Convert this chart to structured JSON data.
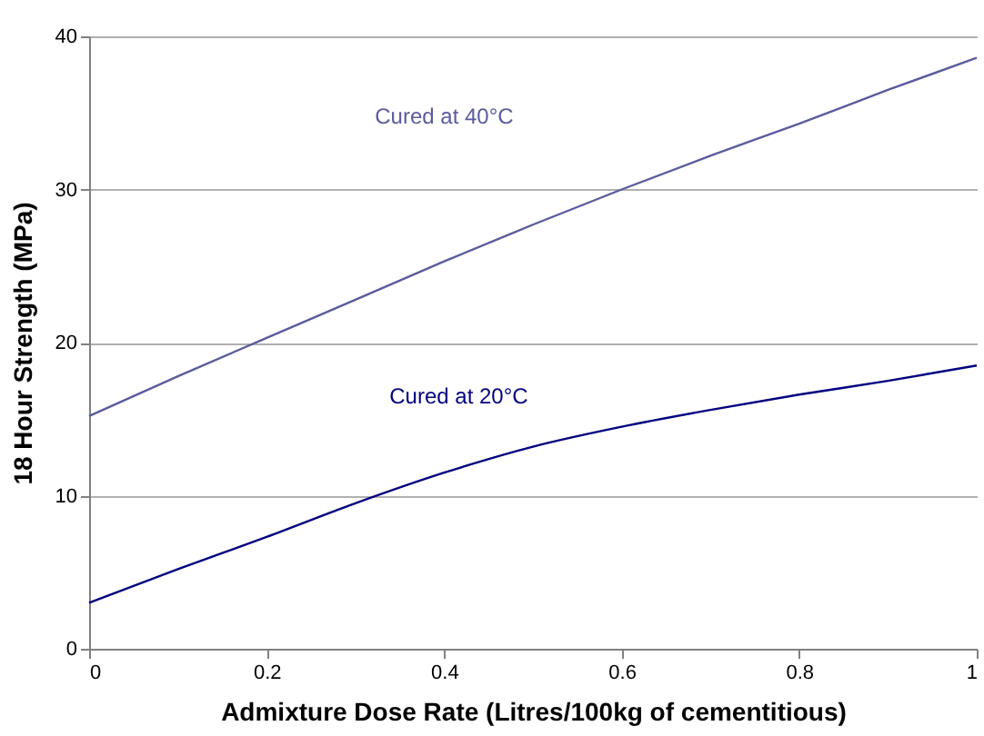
{
  "chart_data": {
    "type": "line",
    "xlabel": "Admixture Dose Rate (Litres/100kg of cementitious)",
    "ylabel": "18 Hour Strength (MPa)",
    "x": [
      0,
      0.1,
      0.2,
      0.3,
      0.4,
      0.5,
      0.6,
      0.7,
      0.8,
      0.9,
      1
    ],
    "series": [
      {
        "name": "Cured at 40°C",
        "color": "#5b5b9e",
        "values": [
          15.2,
          17.8,
          20.3,
          22.8,
          25.3,
          27.7,
          30,
          32.2,
          34.3,
          36.5,
          38.6
        ]
      },
      {
        "name": "Cured at 20°C",
        "color": "#000080",
        "values": [
          3,
          5.2,
          7.3,
          9.5,
          11.5,
          13.2,
          14.5,
          15.6,
          16.6,
          17.5,
          18.5
        ]
      }
    ],
    "xlim": [
      0,
      1
    ],
    "xticks": [
      0,
      0.2,
      0.4,
      0.6,
      0.8,
      1
    ],
    "ylim": [
      0,
      40
    ],
    "yticks": [
      0,
      10,
      20,
      30,
      40
    ],
    "grid": "y",
    "legend": false,
    "marker": "none",
    "line_style": "solid"
  }
}
